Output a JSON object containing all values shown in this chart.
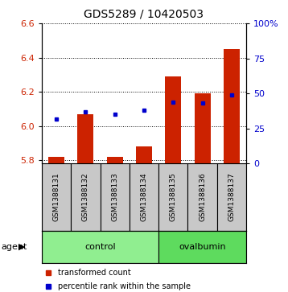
{
  "title": "GDS5289 / 10420503",
  "samples": [
    "GSM1388131",
    "GSM1388132",
    "GSM1388133",
    "GSM1388134",
    "GSM1388135",
    "GSM1388136",
    "GSM1388137"
  ],
  "transformed_counts": [
    5.82,
    6.07,
    5.82,
    5.88,
    6.29,
    6.19,
    6.45
  ],
  "percentile_ranks": [
    32,
    37,
    35,
    38,
    44,
    43,
    49
  ],
  "ylim_left": [
    5.78,
    6.6
  ],
  "ylim_right": [
    0,
    100
  ],
  "yticks_left": [
    5.8,
    6.0,
    6.2,
    6.4,
    6.6
  ],
  "yticks_right": [
    0,
    25,
    50,
    75,
    100
  ],
  "yticklabels_right": [
    "0",
    "25",
    "50",
    "75",
    "100%"
  ],
  "groups": [
    {
      "label": "control",
      "indices": [
        0,
        1,
        2,
        3
      ],
      "color": "#90EE90"
    },
    {
      "label": "ovalbumin",
      "indices": [
        4,
        5,
        6
      ],
      "color": "#5EDB5E"
    }
  ],
  "bar_color": "#CC2200",
  "dot_color": "#0000CC",
  "bar_bottom": 5.78,
  "bar_width": 0.55,
  "tick_label_color_left": "#CC2200",
  "tick_label_color_right": "#0000CC",
  "sample_box_color": "#C8C8C8",
  "agent_label": "agent",
  "legend_items": [
    {
      "color": "#CC2200",
      "label": "transformed count"
    },
    {
      "color": "#0000CC",
      "label": "percentile rank within the sample"
    }
  ]
}
